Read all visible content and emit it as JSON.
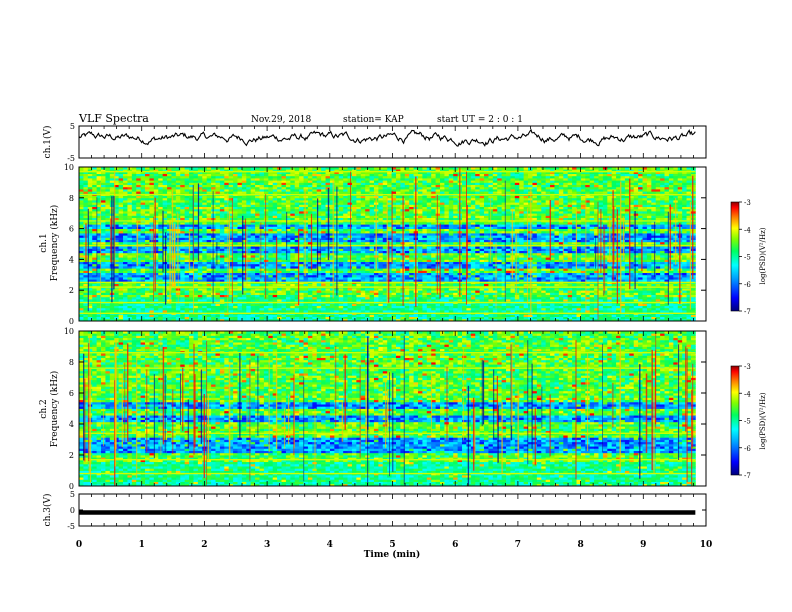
{
  "header": {
    "title": "VLF Spectra",
    "date": "Nov.29, 2018",
    "station": "station= KAP",
    "start_ut": "start  UT =   2 : 0  : 1"
  },
  "chart_data": [
    {
      "type": "line",
      "panel": "ch1-waveform",
      "ylabel": "ch.1(V)",
      "ylim": [
        -5,
        5
      ],
      "yticks": [
        5,
        -5
      ],
      "xlim": [
        0,
        10
      ],
      "description_of_series": "noisy voltage trace fluctuating mostly between about -1 and +3.5 V over 0 to ~9.8 min"
    },
    {
      "type": "heatmap",
      "panel": "ch1-spectrogram",
      "ylabel": "Frequency (kHz)",
      "channel_label": "ch.1",
      "ylim": [
        0,
        10
      ],
      "yticks": [
        0,
        2,
        4,
        6,
        8,
        10
      ],
      "xlim": [
        0,
        10
      ],
      "data_extent_min": [
        0,
        9.83
      ],
      "colorbar": {
        "label": "log(PSD)(V²/Hz)",
        "range": [
          -7,
          -3
        ],
        "ticks": [
          -3,
          -4,
          -5,
          -6,
          -7
        ]
      },
      "dark_bands_khz": [
        [
          2.6,
          3.2
        ],
        [
          3.5,
          3.9
        ],
        [
          4.4,
          4.8
        ],
        [
          5.2,
          5.7
        ],
        [
          6.0,
          6.3
        ]
      ],
      "bright_lines_khz": [
        0.5,
        1.2,
        2.2,
        2.5,
        4.9,
        6.5,
        8.2,
        9.7
      ]
    },
    {
      "type": "heatmap",
      "panel": "ch2-spectrogram",
      "ylabel": "Frequency (kHz)",
      "channel_label": "ch.2",
      "ylim": [
        0,
        10
      ],
      "yticks": [
        0,
        2,
        4,
        6,
        8,
        10
      ],
      "xlim": [
        0,
        10
      ],
      "data_extent_min": [
        0,
        9.83
      ],
      "colorbar": {
        "label": "log(PSD)(V²/Hz)",
        "range": [
          -7,
          -3
        ],
        "ticks": [
          -3,
          -4,
          -5,
          -6,
          -7
        ]
      },
      "dark_bands_khz": [
        [
          2.2,
          3.1
        ],
        [
          4.1,
          4.5
        ],
        [
          5.0,
          5.4
        ]
      ],
      "bright_lines_khz": [
        0.8,
        1.7,
        3.4,
        7.6,
        8.6
      ]
    },
    {
      "type": "line",
      "panel": "ch3-waveform",
      "ylabel": "ch.3(V)",
      "ylim": [
        -5,
        5
      ],
      "yticks": [
        5,
        0,
        -5
      ],
      "xlim": [
        0,
        10
      ],
      "constant_value": -0.8
    }
  ],
  "xaxis": {
    "label": "Time (min)",
    "ticks": [
      "0",
      "1",
      "2",
      "3",
      "4",
      "5",
      "6",
      "7",
      "8",
      "9",
      "10"
    ]
  },
  "colors": {
    "colormap": [
      "#00007a",
      "#0000ff",
      "#00a0ff",
      "#00ffff",
      "#00ff60",
      "#80ff00",
      "#ffff00",
      "#ff8000",
      "#ff0000",
      "#8a0000"
    ],
    "line": "#000000"
  }
}
